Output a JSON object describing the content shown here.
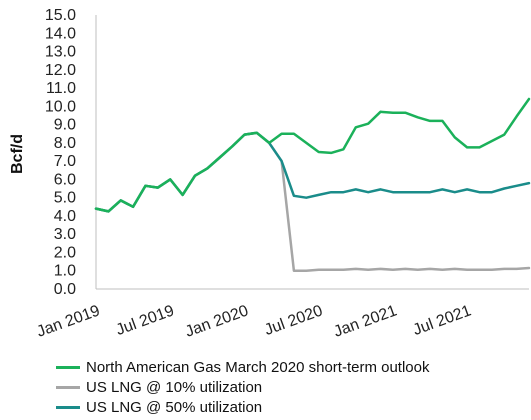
{
  "chart_data": {
    "type": "line",
    "ylabel": "Bcf/d",
    "ylim": [
      0,
      15
    ],
    "yticks": [
      "0.0",
      "1.0",
      "2.0",
      "3.0",
      "4.0",
      "5.0",
      "6.0",
      "7.0",
      "8.0",
      "9.0",
      "10.0",
      "11.0",
      "12.0",
      "13.0",
      "14.0",
      "15.0"
    ],
    "xtick_labels": [
      "Jan 2019",
      "Jul 2019",
      "Jan 2020",
      "Jul 2020",
      "Jan 2021",
      "Jul 2021"
    ],
    "x": [
      "2019-01",
      "2019-02",
      "2019-03",
      "2019-04",
      "2019-05",
      "2019-06",
      "2019-07",
      "2019-08",
      "2019-09",
      "2019-10",
      "2019-11",
      "2019-12",
      "2020-01",
      "2020-02",
      "2020-03",
      "2020-04",
      "2020-05",
      "2020-06",
      "2020-07",
      "2020-08",
      "2020-09",
      "2020-10",
      "2020-11",
      "2020-12",
      "2021-01",
      "2021-02",
      "2021-03",
      "2021-04",
      "2021-05",
      "2021-06",
      "2021-07",
      "2021-08",
      "2021-09",
      "2021-10",
      "2021-11",
      "2021-12"
    ],
    "series": [
      {
        "name": "North American Gas March 2020 short-term outlook",
        "color": "#1bb15a",
        "values": [
          4.4,
          4.25,
          4.85,
          4.5,
          5.65,
          5.55,
          6.0,
          5.15,
          6.2,
          6.6,
          7.2,
          7.8,
          8.45,
          8.55,
          8.0,
          8.5,
          8.5,
          8.0,
          7.5,
          7.45,
          7.65,
          8.85,
          9.05,
          9.7,
          9.65,
          9.65,
          9.4,
          9.2,
          9.2,
          8.3,
          7.75,
          7.75,
          8.1,
          8.45,
          9.45,
          10.4
        ]
      },
      {
        "name": "US LNG @ 10% utilization",
        "color": "#a6a6a6",
        "values": [
          4.4,
          4.25,
          4.85,
          4.5,
          5.65,
          5.55,
          6.0,
          5.15,
          6.2,
          6.6,
          7.2,
          7.8,
          8.45,
          8.55,
          8.0,
          7.0,
          1.0,
          1.0,
          1.05,
          1.05,
          1.05,
          1.1,
          1.05,
          1.1,
          1.05,
          1.1,
          1.05,
          1.1,
          1.05,
          1.1,
          1.05,
          1.05,
          1.05,
          1.1,
          1.1,
          1.15
        ]
      },
      {
        "name": "US LNG @ 50% utilization",
        "color": "#1a8c8a",
        "values": [
          4.4,
          4.25,
          4.85,
          4.5,
          5.65,
          5.55,
          6.0,
          5.15,
          6.2,
          6.6,
          7.2,
          7.8,
          8.45,
          8.55,
          8.0,
          7.0,
          5.1,
          5.0,
          5.15,
          5.3,
          5.3,
          5.45,
          5.3,
          5.45,
          5.3,
          5.3,
          5.3,
          5.3,
          5.45,
          5.3,
          5.45,
          5.3,
          5.3,
          5.5,
          5.65,
          5.8
        ]
      }
    ],
    "grid": false
  }
}
